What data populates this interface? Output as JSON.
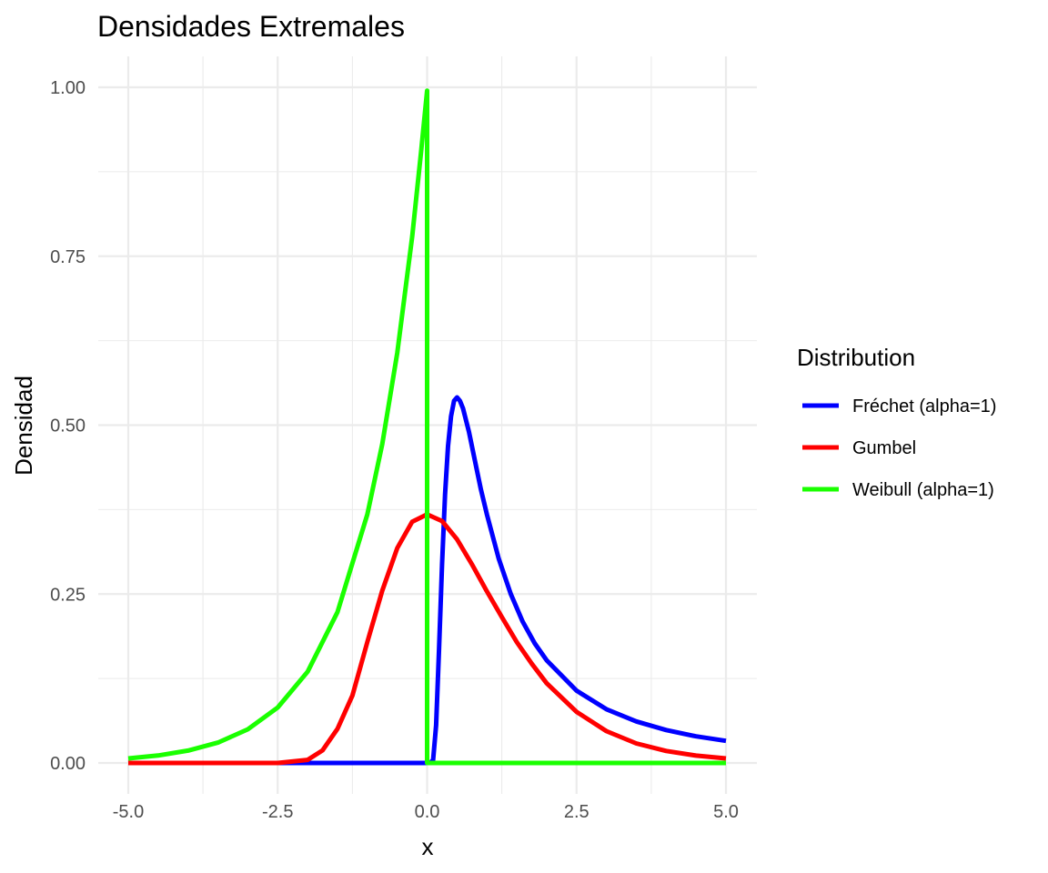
{
  "chart_data": {
    "type": "line",
    "title": "Densidades Extremales",
    "xlabel": "x",
    "ylabel": "Densidad",
    "xlim": [
      -5.0,
      5.0
    ],
    "ylim": [
      0.0,
      1.0
    ],
    "x_ticks": [
      -5.0,
      -2.5,
      0.0,
      2.5,
      5.0
    ],
    "x_tick_labels": [
      "-5.0",
      "-2.5",
      "0.0",
      "2.5",
      "5.0"
    ],
    "y_ticks": [
      0.0,
      0.25,
      0.5,
      0.75,
      1.0
    ],
    "y_tick_labels": [
      "0.00",
      "0.25",
      "0.50",
      "0.75",
      "1.00"
    ],
    "grid": true,
    "legend": {
      "title": "Distribution",
      "position": "right",
      "entries": [
        "Fréchet (alpha=1)",
        "Gumbel",
        "Weibull (alpha=1)"
      ]
    },
    "series": [
      {
        "name": "Fréchet (alpha=1)",
        "color": "#0000ff",
        "x": [
          -5.0,
          -2.5,
          0.0,
          0.05,
          0.1,
          0.15,
          0.2,
          0.25,
          0.3,
          0.35,
          0.4,
          0.45,
          0.5,
          0.55,
          0.6,
          0.7,
          0.8,
          0.9,
          1.0,
          1.2,
          1.4,
          1.6,
          1.8,
          2.0,
          2.5,
          3.0,
          3.5,
          4.0,
          4.5,
          5.0
        ],
        "values": [
          0.0,
          0.0,
          0.0,
          0.0,
          0.0045,
          0.056,
          0.168,
          0.293,
          0.397,
          0.469,
          0.513,
          0.536,
          0.541,
          0.536,
          0.525,
          0.49,
          0.447,
          0.405,
          0.368,
          0.302,
          0.25,
          0.209,
          0.177,
          0.152,
          0.107,
          0.0796,
          0.0615,
          0.0487,
          0.0395,
          0.0327
        ]
      },
      {
        "name": "Gumbel",
        "color": "#ff0000",
        "x": [
          -5.0,
          -3.0,
          -2.5,
          -2.0,
          -1.75,
          -1.5,
          -1.25,
          -1.0,
          -0.75,
          -0.5,
          -0.25,
          0.0,
          0.25,
          0.5,
          0.75,
          1.0,
          1.25,
          1.5,
          1.75,
          2.0,
          2.5,
          3.0,
          3.5,
          4.0,
          4.5,
          5.0
        ],
        "values": [
          0.0,
          0.0,
          0.0,
          0.0046,
          0.0186,
          0.0504,
          0.0999,
          0.179,
          0.255,
          0.318,
          0.357,
          0.368,
          0.358,
          0.331,
          0.294,
          0.254,
          0.216,
          0.179,
          0.147,
          0.118,
          0.0757,
          0.0471,
          0.029,
          0.0177,
          0.0109,
          0.0067
        ]
      },
      {
        "name": "Weibull (alpha=1)",
        "color": "#1aff00",
        "x": [
          -5.0,
          -4.5,
          -4.0,
          -3.5,
          -3.0,
          -2.5,
          -2.0,
          -1.5,
          -1.0,
          -0.75,
          -0.5,
          -0.25,
          -0.1,
          0.0,
          0.0,
          0.5,
          1.0,
          2.0,
          3.0,
          4.0,
          5.0
        ],
        "values": [
          0.0067,
          0.0111,
          0.0183,
          0.0302,
          0.0498,
          0.0821,
          0.135,
          0.223,
          0.368,
          0.472,
          0.607,
          0.779,
          0.905,
          0.995,
          0.0,
          0.0,
          0.0,
          0.0,
          0.0,
          0.0,
          0.0
        ]
      }
    ]
  }
}
